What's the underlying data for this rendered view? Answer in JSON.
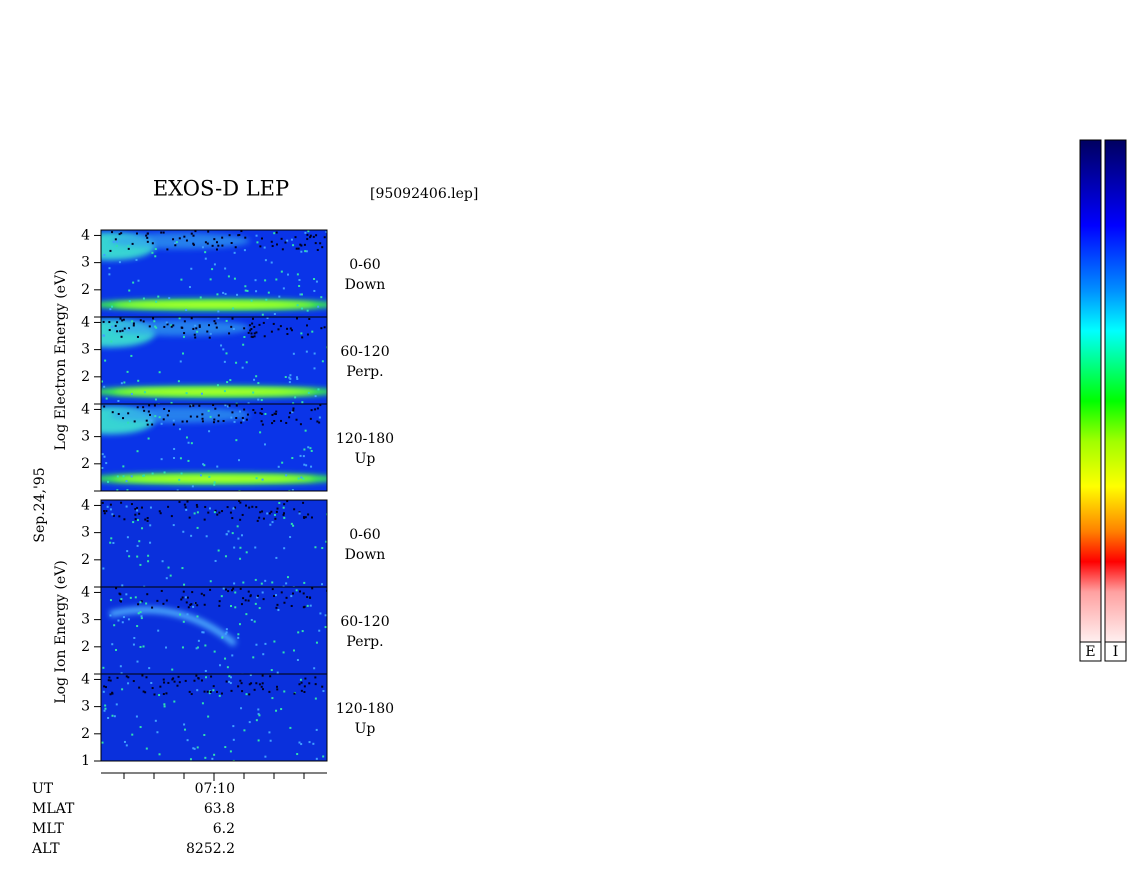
{
  "title": "EXOS-D LEP",
  "file": "[95092406.lep]",
  "date": "Sep.24,'95",
  "electron_axis_label": "Log Electron Energy (eV)",
  "ion_axis_label": "Log Ion Energy (eV)",
  "panels": [
    {
      "species": "electron",
      "angle": "0-60",
      "direction": "Down",
      "ylim": [
        1,
        4.2
      ],
      "yticks": [
        2,
        3,
        4
      ]
    },
    {
      "species": "electron",
      "angle": "60-120",
      "direction": "Perp.",
      "ylim": [
        1,
        4.2
      ],
      "yticks": [
        2,
        3,
        4
      ]
    },
    {
      "species": "electron",
      "angle": "120-180",
      "direction": "Up",
      "ylim": [
        1,
        4.2
      ],
      "yticks": [
        2,
        3,
        4
      ]
    },
    {
      "species": "ion",
      "angle": "0-60",
      "direction": "Down",
      "ylim": [
        1,
        4.2
      ],
      "yticks": [
        2,
        3,
        4
      ]
    },
    {
      "species": "ion",
      "angle": "60-120",
      "direction": "Perp.",
      "ylim": [
        1,
        4.2
      ],
      "yticks": [
        2,
        3,
        4
      ]
    },
    {
      "species": "ion",
      "angle": "120-180",
      "direction": "Up",
      "ylim": [
        1,
        4.2
      ],
      "yticks": [
        1,
        2,
        3,
        4
      ]
    }
  ],
  "footer": [
    {
      "label": "UT",
      "value": "07:10"
    },
    {
      "label": "MLAT",
      "value": 63.8
    },
    {
      "label": "MLT",
      "value": 6.2
    },
    {
      "label": "ALT",
      "value": 8252.2
    }
  ],
  "colorbars": [
    "E",
    "I"
  ]
}
